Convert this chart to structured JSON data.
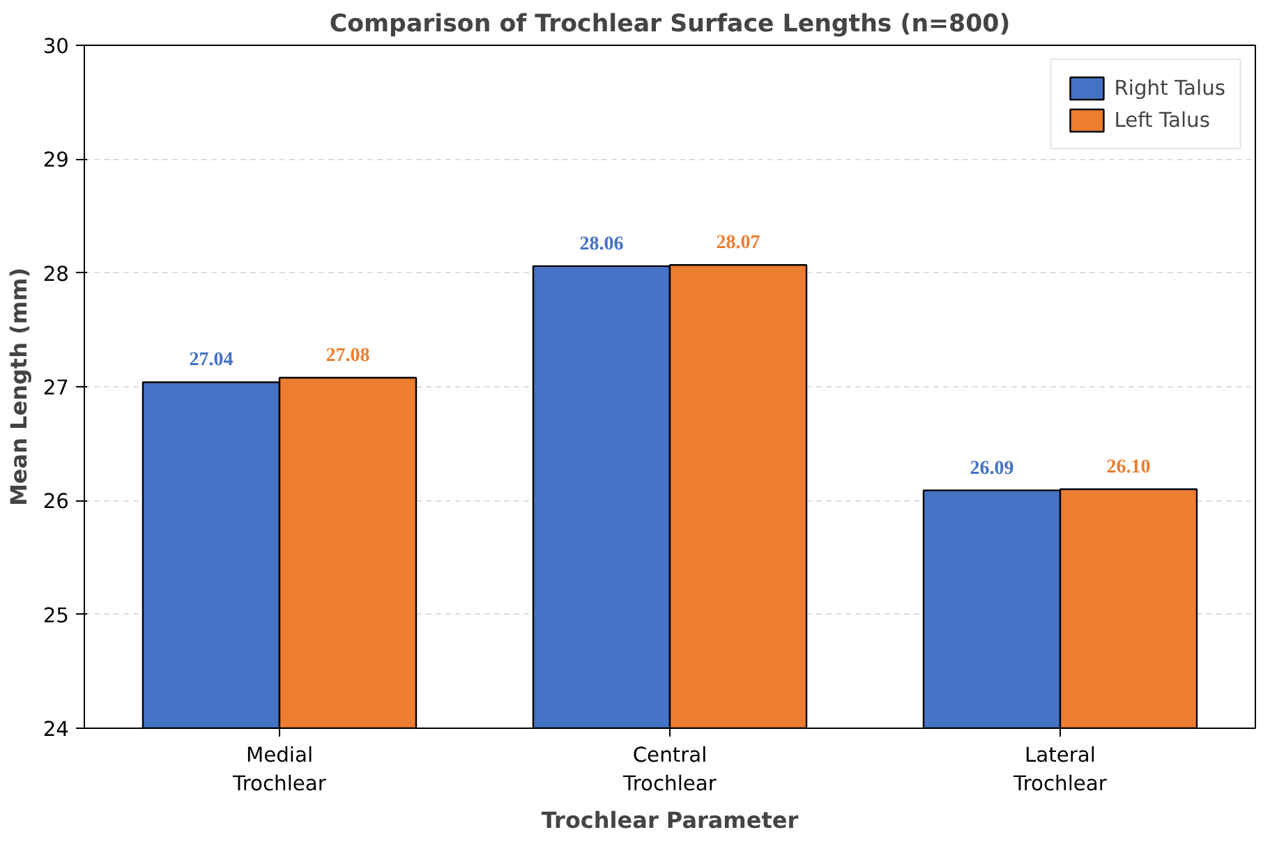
{
  "chart_data": {
    "type": "bar",
    "title": "Comparison of Trochlear Surface Lengths (n=800)",
    "xlabel": "Trochlear Parameter",
    "ylabel": "Mean Length (mm)",
    "categories": [
      "Medial\nTrochlear",
      "Central\nTrochlear",
      "Lateral\nTrochlear"
    ],
    "series": [
      {
        "name": "Right Talus",
        "color": "#4472c4",
        "values": [
          27.04,
          28.06,
          26.09
        ],
        "value_labels": [
          "27.04",
          "28.06",
          "26.09"
        ]
      },
      {
        "name": "Left Talus",
        "color": "#ed7d31",
        "values": [
          27.08,
          28.07,
          26.1
        ],
        "value_labels": [
          "27.08",
          "28.07",
          "26.10"
        ]
      }
    ],
    "ylim": [
      24,
      30
    ],
    "yticks": [
      24,
      25,
      26,
      27,
      28,
      29,
      30
    ],
    "grid": "y",
    "legend": "top right"
  }
}
